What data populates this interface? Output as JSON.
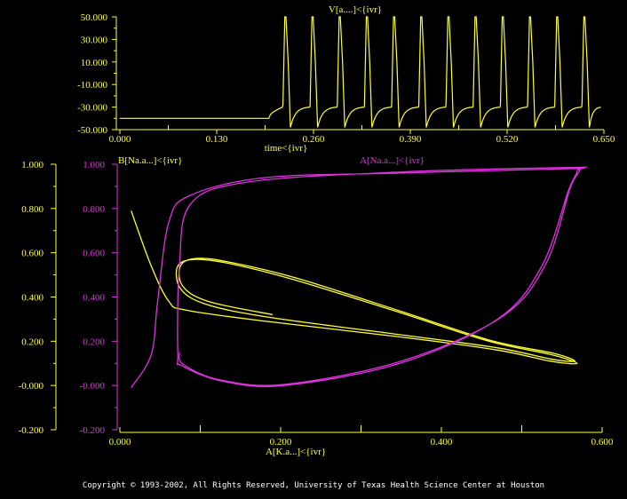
{
  "colors": {
    "yellow": "#ffff33",
    "magenta": "#dd33dd",
    "background": "#000000"
  },
  "copyright": "Copyright © 1993-2002, All Rights Reserved, University of Texas Health Science Center at Houston",
  "chart_data": [
    {
      "type": "line",
      "title": "V[a....]<{ivr}",
      "xlabel": "time<{ivr}",
      "ylabel": "",
      "xlim": [
        0,
        0.65
      ],
      "ylim": [
        -50,
        50
      ],
      "xticks": [
        "0.000",
        "0.130",
        "0.260",
        "0.390",
        "0.520",
        "0.650"
      ],
      "yticks": [
        "50.000",
        "30.000",
        "10.000",
        "-10.000",
        "-30.000",
        "-50.000"
      ],
      "series": [
        {
          "name": "V",
          "color": "#ffff33",
          "rest_value": -40,
          "stim_onset": 0.2,
          "spike_times_first": 0.223,
          "spike_period": 0.0365,
          "spike_peak": 50,
          "trough": -48,
          "end_value": -30
        }
      ]
    },
    {
      "type": "line",
      "title": "",
      "xlabel": "A[K.a...]<{ivr}",
      "xlim": [
        0,
        0.6
      ],
      "ylim": [
        -0.2,
        1.0
      ],
      "xticks": [
        "0.000",
        "0.200",
        "0.400",
        "0.600"
      ],
      "yticks_left": [
        "1.000",
        "0.800",
        "0.600",
        "0.400",
        "0.200",
        "-0.000",
        "-0.200"
      ],
      "yticks_right": [
        "1.000",
        "0.800",
        "0.600",
        "0.400",
        "0.200",
        "-0.000",
        "-0.200"
      ],
      "series": [
        {
          "name": "B[Na.a...]<{ivr}",
          "color": "#ffff33",
          "x": [
            0.014,
            0.039,
            0.061,
            0.083,
            0.182,
            0.348,
            0.47,
            0.536,
            0.569,
            0.536,
            0.459,
            0.348,
            0.215,
            0.138,
            0.094,
            0.072,
            0.075,
            0.105,
            0.182,
            0.348,
            0.47,
            0.536,
            0.566,
            0.54,
            0.46,
            0.35,
            0.22,
            0.14,
            0.098,
            0.076,
            0.078,
            0.11,
            0.19
          ],
          "y": [
            0.79,
            0.54,
            0.38,
            0.34,
            0.29,
            0.22,
            0.16,
            0.11,
            0.1,
            0.14,
            0.2,
            0.33,
            0.48,
            0.55,
            0.57,
            0.54,
            0.44,
            0.37,
            0.31,
            0.23,
            0.17,
            0.12,
            0.11,
            0.145,
            0.205,
            0.335,
            0.485,
            0.555,
            0.575,
            0.545,
            0.45,
            0.38,
            0.32
          ]
        },
        {
          "name": "A[Na.a...]<{ivr}",
          "color": "#dd33dd",
          "x": [
            0.014,
            0.039,
            0.047,
            0.061,
            0.088,
            0.182,
            0.348,
            0.558,
            0.569,
            0.558,
            0.525,
            0.47,
            0.348,
            0.204,
            0.127,
            0.077,
            0.072,
            0.074,
            0.088,
            0.16,
            0.35,
            0.56,
            0.572,
            0.56,
            0.53,
            0.475,
            0.35,
            0.205,
            0.125,
            0.079,
            0.074
          ],
          "y": [
            -0.01,
            0.14,
            0.38,
            0.74,
            0.86,
            0.94,
            0.96,
            0.98,
            0.97,
            0.88,
            0.54,
            0.3,
            0.1,
            0.0,
            0.02,
            0.09,
            0.14,
            0.54,
            0.82,
            0.92,
            0.965,
            0.985,
            0.975,
            0.89,
            0.55,
            0.31,
            0.11,
            0.005,
            0.025,
            0.095,
            0.15
          ]
        }
      ]
    }
  ]
}
